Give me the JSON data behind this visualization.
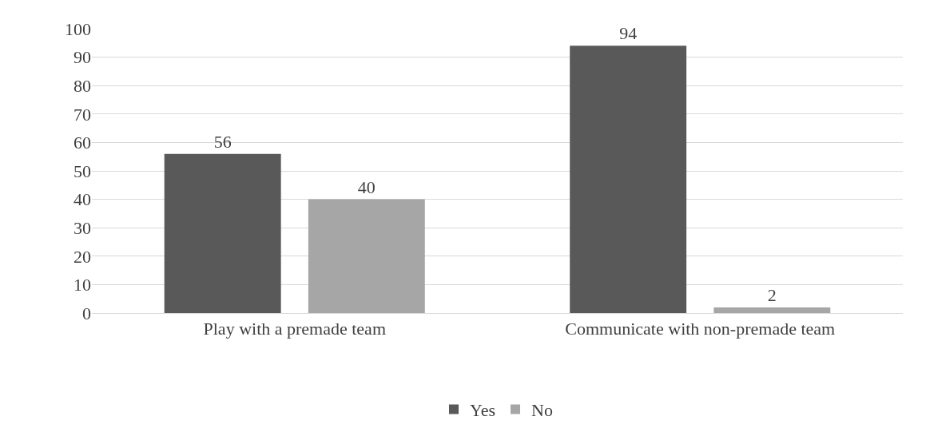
{
  "chart_data": {
    "type": "bar",
    "categories": [
      "Play with a premade team",
      "Communicate with non-premade team"
    ],
    "series": [
      {
        "name": "Yes",
        "color": "#595959",
        "values": [
          56,
          94
        ]
      },
      {
        "name": "No",
        "color": "#a6a6a6",
        "values": [
          40,
          2
        ]
      }
    ],
    "ylim": [
      0,
      100
    ],
    "yticks": [
      0,
      10,
      20,
      30,
      40,
      50,
      60,
      70,
      80,
      90,
      100
    ],
    "grid": "y",
    "legend": "bottom",
    "data_labels": true
  }
}
